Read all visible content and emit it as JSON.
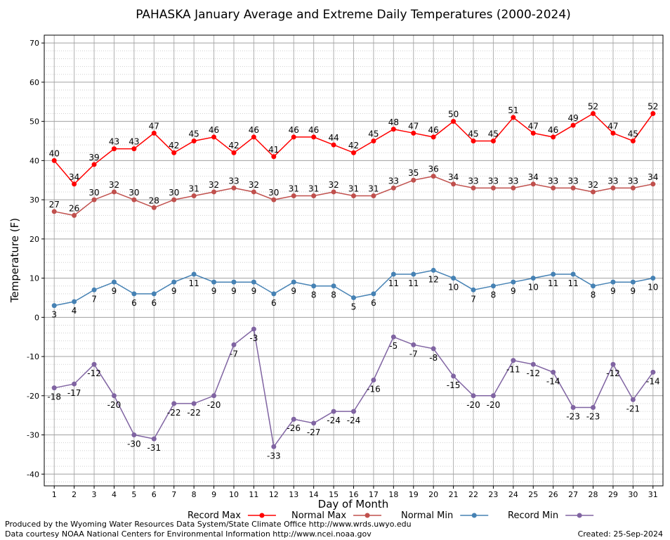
{
  "chart_data": {
    "type": "line",
    "title": "PAHASKA January Average and Extreme Daily Temperatures (2000-2024)",
    "xlabel": "Day of Month",
    "ylabel": "Temperature (F)",
    "x": [
      1,
      2,
      3,
      4,
      5,
      6,
      7,
      8,
      9,
      10,
      11,
      12,
      13,
      14,
      15,
      16,
      17,
      18,
      19,
      20,
      21,
      22,
      23,
      24,
      25,
      26,
      27,
      28,
      29,
      30,
      31
    ],
    "xlim": [
      0.5,
      31.5
    ],
    "ylim": [
      -43,
      72
    ],
    "yticks": [
      -40,
      -30,
      -20,
      -10,
      0,
      10,
      20,
      30,
      40,
      50,
      60,
      70
    ],
    "grid": true,
    "legend_position": "bottom",
    "series": [
      {
        "name": "Record Max",
        "color": "#ff0000",
        "values": [
          40,
          34,
          39,
          43,
          43,
          47,
          42,
          45,
          46,
          42,
          46,
          41,
          46,
          46,
          44,
          42,
          45,
          48,
          47,
          46,
          50,
          45,
          45,
          51,
          47,
          46,
          49,
          52,
          47,
          45,
          52
        ]
      },
      {
        "name": "Normal Max",
        "color": "#c0504d",
        "values": [
          27,
          26,
          30,
          32,
          30,
          28,
          30,
          31,
          32,
          33,
          32,
          30,
          31,
          31,
          32,
          31,
          31,
          33,
          35,
          36,
          34,
          33,
          33,
          33,
          34,
          33,
          33,
          32,
          33,
          33,
          34
        ]
      },
      {
        "name": "Normal Min",
        "color": "#4682b4",
        "values": [
          3,
          4,
          7,
          9,
          6,
          6,
          9,
          11,
          9,
          9,
          9,
          6,
          9,
          8,
          8,
          5,
          6,
          11,
          11,
          12,
          10,
          7,
          8,
          9,
          10,
          11,
          11,
          8,
          9,
          9,
          10
        ]
      },
      {
        "name": "Record Min",
        "color": "#8064a2",
        "values": [
          -18,
          -17,
          -12,
          -20,
          -30,
          -31,
          -22,
          -22,
          -20,
          -7,
          -3,
          -33,
          -26,
          -27,
          -24,
          -24,
          -16,
          -5,
          -7,
          -8,
          -15,
          -20,
          -20,
          -11,
          -12,
          -14,
          -23,
          -23,
          -12,
          -21,
          -14
        ]
      }
    ]
  },
  "footer": {
    "left_line1": "Produced by the Wyoming Water Resources Data System/State Climate Office http://www.wrds.uwyo.edu",
    "left_line2": "Data courtesy NOAA National Centers for Environmental Information http://www.ncei.noaa.gov",
    "created": "Created: 25-Sep-2024"
  }
}
